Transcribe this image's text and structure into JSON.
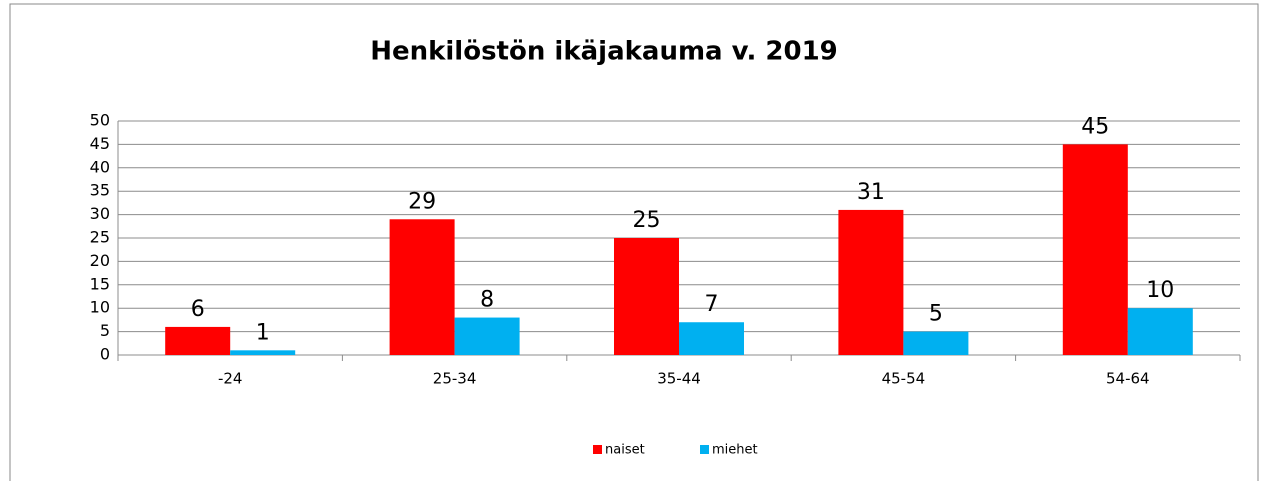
{
  "chart_data": {
    "type": "bar",
    "title": "Henkilöstön ikäjakauma v. 2019",
    "categories": [
      "-24",
      "25-34",
      "35-44",
      "45-54",
      "54-64"
    ],
    "series": [
      {
        "name": "naiset",
        "color": "#ff0000",
        "values": [
          6,
          29,
          25,
          31,
          45
        ]
      },
      {
        "name": "miehet",
        "color": "#00b0f0",
        "values": [
          1,
          8,
          7,
          5,
          10
        ]
      }
    ],
    "ylim": [
      0,
      50
    ],
    "yticks": [
      0,
      5,
      10,
      15,
      20,
      25,
      30,
      35,
      40,
      45,
      50
    ],
    "grid": true,
    "legend": "bottom"
  }
}
